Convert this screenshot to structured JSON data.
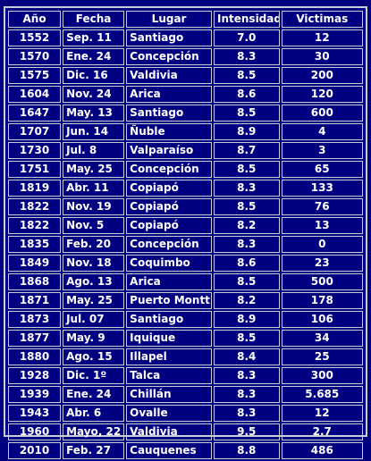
{
  "table": {
    "headers": {
      "year": "Año",
      "date": "Fecha",
      "place": "Lugar",
      "intensity": "Intensidad",
      "victims": "Victimas"
    },
    "rows": [
      {
        "year": "1552",
        "date": "Sep. 11",
        "place": "Santiago",
        "intensity": "7.0",
        "victims": "12"
      },
      {
        "year": "1570",
        "date": "Ene. 24",
        "place": "Concepción",
        "intensity": "8.3",
        "victims": "30"
      },
      {
        "year": "1575",
        "date": "Dic. 16",
        "place": "Valdivia",
        "intensity": "8.5",
        "victims": "200"
      },
      {
        "year": "1604",
        "date": "Nov. 24",
        "place": "Arica",
        "intensity": "8.6",
        "victims": "120"
      },
      {
        "year": "1647",
        "date": "May. 13",
        "place": "Santiago",
        "intensity": "8.5",
        "victims": "600"
      },
      {
        "year": "1707",
        "date": "Jun. 14",
        "place": "Ñuble",
        "intensity": "8.9",
        "victims": "4"
      },
      {
        "year": "1730",
        "date": "Jul. 8",
        "place": "Valparaíso",
        "intensity": "8.7",
        "victims": "3"
      },
      {
        "year": "1751",
        "date": "May. 25",
        "place": "Concepción",
        "intensity": "8.5",
        "victims": "65"
      },
      {
        "year": "1819",
        "date": "Abr. 11",
        "place": "Copiapó",
        "intensity": "8.3",
        "victims": "133"
      },
      {
        "year": "1822",
        "date": "Nov. 19",
        "place": "Copiapó",
        "intensity": "8.5",
        "victims": "76"
      },
      {
        "year": "1822",
        "date": "Nov. 5",
        "place": "Copiapó",
        "intensity": "8.2",
        "victims": "13"
      },
      {
        "year": "1835",
        "date": "Feb. 20",
        "place": "Concepción",
        "intensity": "8.3",
        "victims": "0"
      },
      {
        "year": "1849",
        "date": "Nov. 18",
        "place": "Coquimbo",
        "intensity": "8.6",
        "victims": "23"
      },
      {
        "year": "1868",
        "date": "Ago. 13",
        "place": "Arica",
        "intensity": "8.5",
        "victims": "500"
      },
      {
        "year": "1871",
        "date": "May. 25",
        "place": "Puerto Montt",
        "intensity": "8.2",
        "victims": "178"
      },
      {
        "year": "1873",
        "date": "Jul. 07",
        "place": "Santiago",
        "intensity": "8.9",
        "victims": "106"
      },
      {
        "year": "1877",
        "date": "May. 9",
        "place": "Iquique",
        "intensity": "8.5",
        "victims": "34"
      },
      {
        "year": "1880",
        "date": "Ago. 15",
        "place": "Illapel",
        "intensity": "8.4",
        "victims": "25"
      },
      {
        "year": "1928",
        "date": "Dic. 1º",
        "place": "Talca",
        "intensity": "8.3",
        "victims": "300"
      },
      {
        "year": "1939",
        "date": "Ene. 24",
        "place": "Chillán",
        "intensity": "8.3",
        "victims": "5.685"
      },
      {
        "year": "1943",
        "date": "Abr. 6",
        "place": "Ovalle",
        "intensity": "8.3",
        "victims": "12"
      },
      {
        "year": "1960",
        "date": "Mayo, 22",
        "place": "Valdivia",
        "intensity": "9.5",
        "victims": "2.7"
      },
      {
        "year": "2010",
        "date": "Feb. 27",
        "place": "Cauquenes",
        "intensity": "8.8",
        "victims": "486"
      }
    ]
  },
  "colors": {
    "background": "#000080",
    "text": "#ffffff",
    "border": "#c9ccd6"
  }
}
